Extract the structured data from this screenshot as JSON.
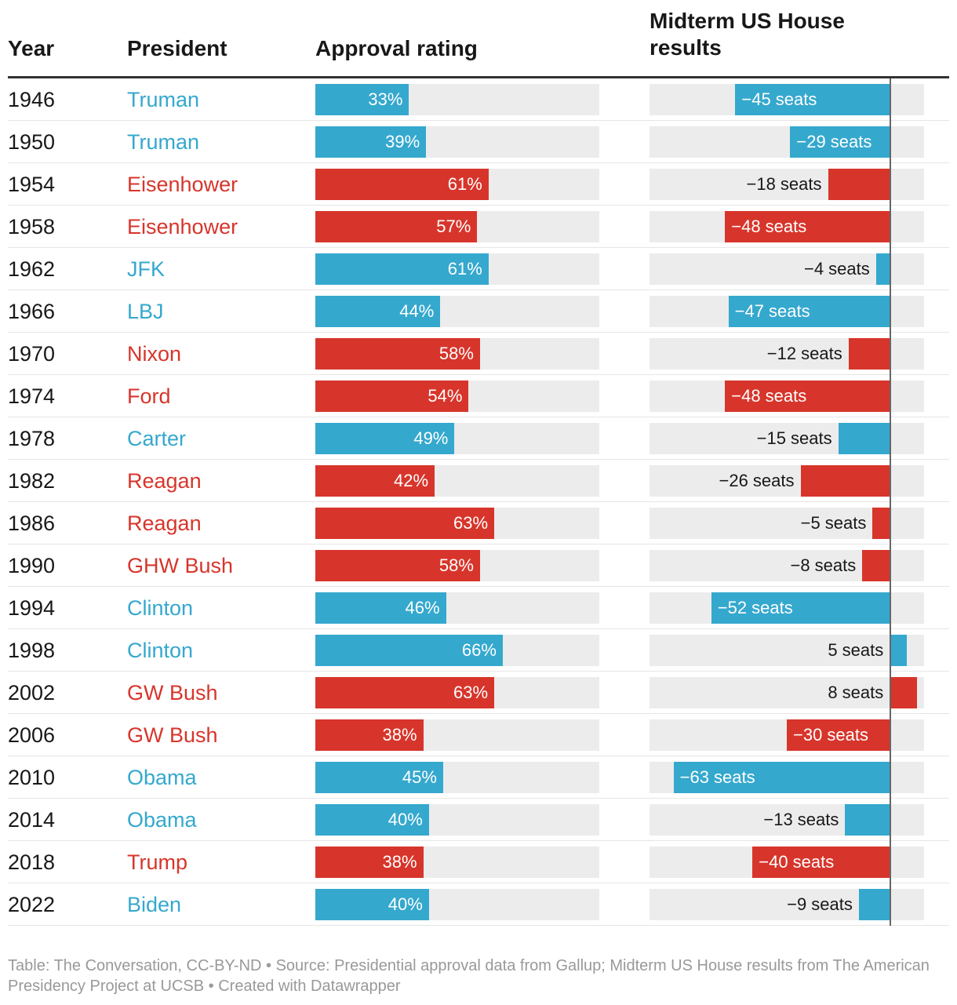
{
  "headers": {
    "year": "Year",
    "president": "President",
    "approval": "Approval rating",
    "seats": "Midterm US House results"
  },
  "colors": {
    "democrat": "#35a8ce",
    "republican": "#d7352b",
    "background_bar": "#ececec"
  },
  "chart_data": {
    "type": "table",
    "approval_range": [
      0,
      100
    ],
    "seats_range": [
      -70,
      10
    ],
    "rows": [
      {
        "year": "1946",
        "president": "Truman",
        "party": "democrat",
        "approval": 33,
        "approval_label": "33%",
        "seats": -45,
        "seats_label": "−45 seats"
      },
      {
        "year": "1950",
        "president": "Truman",
        "party": "democrat",
        "approval": 39,
        "approval_label": "39%",
        "seats": -29,
        "seats_label": "−29 seats"
      },
      {
        "year": "1954",
        "president": "Eisenhower",
        "party": "republican",
        "approval": 61,
        "approval_label": "61%",
        "seats": -18,
        "seats_label": "−18 seats"
      },
      {
        "year": "1958",
        "president": "Eisenhower",
        "party": "republican",
        "approval": 57,
        "approval_label": "57%",
        "seats": -48,
        "seats_label": "−48 seats"
      },
      {
        "year": "1962",
        "president": "JFK",
        "party": "democrat",
        "approval": 61,
        "approval_label": "61%",
        "seats": -4,
        "seats_label": "−4 seats"
      },
      {
        "year": "1966",
        "president": "LBJ",
        "party": "democrat",
        "approval": 44,
        "approval_label": "44%",
        "seats": -47,
        "seats_label": "−47 seats"
      },
      {
        "year": "1970",
        "president": "Nixon",
        "party": "republican",
        "approval": 58,
        "approval_label": "58%",
        "seats": -12,
        "seats_label": "−12 seats"
      },
      {
        "year": "1974",
        "president": "Ford",
        "party": "republican",
        "approval": 54,
        "approval_label": "54%",
        "seats": -48,
        "seats_label": "−48 seats"
      },
      {
        "year": "1978",
        "president": "Carter",
        "party": "democrat",
        "approval": 49,
        "approval_label": "49%",
        "seats": -15,
        "seats_label": "−15 seats"
      },
      {
        "year": "1982",
        "president": "Reagan",
        "party": "republican",
        "approval": 42,
        "approval_label": "42%",
        "seats": -26,
        "seats_label": "−26 seats"
      },
      {
        "year": "1986",
        "president": "Reagan",
        "party": "republican",
        "approval": 63,
        "approval_label": "63%",
        "seats": -5,
        "seats_label": "−5 seats"
      },
      {
        "year": "1990",
        "president": "GHW Bush",
        "party": "republican",
        "approval": 58,
        "approval_label": "58%",
        "seats": -8,
        "seats_label": "−8 seats"
      },
      {
        "year": "1994",
        "president": "Clinton",
        "party": "democrat",
        "approval": 46,
        "approval_label": "46%",
        "seats": -52,
        "seats_label": "−52 seats"
      },
      {
        "year": "1998",
        "president": "Clinton",
        "party": "democrat",
        "approval": 66,
        "approval_label": "66%",
        "seats": 5,
        "seats_label": "5 seats"
      },
      {
        "year": "2002",
        "president": "GW Bush",
        "party": "republican",
        "approval": 63,
        "approval_label": "63%",
        "seats": 8,
        "seats_label": "8 seats"
      },
      {
        "year": "2006",
        "president": "GW Bush",
        "party": "republican",
        "approval": 38,
        "approval_label": "38%",
        "seats": -30,
        "seats_label": "−30 seats"
      },
      {
        "year": "2010",
        "president": "Obama",
        "party": "democrat",
        "approval": 45,
        "approval_label": "45%",
        "seats": -63,
        "seats_label": "−63 seats"
      },
      {
        "year": "2014",
        "president": "Obama",
        "party": "democrat",
        "approval": 40,
        "approval_label": "40%",
        "seats": -13,
        "seats_label": "−13 seats"
      },
      {
        "year": "2018",
        "president": "Trump",
        "party": "republican",
        "approval": 38,
        "approval_label": "38%",
        "seats": -40,
        "seats_label": "−40 seats"
      },
      {
        "year": "2022",
        "president": "Biden",
        "party": "democrat",
        "approval": 40,
        "approval_label": "40%",
        "seats": -9,
        "seats_label": "−9 seats"
      }
    ]
  },
  "footer": "Table: The Conversation, CC-BY-ND • Source: Presidential approval data from Gallup; Midterm US House results from The American Presidency Project at UCSB • Created with Datawrapper"
}
